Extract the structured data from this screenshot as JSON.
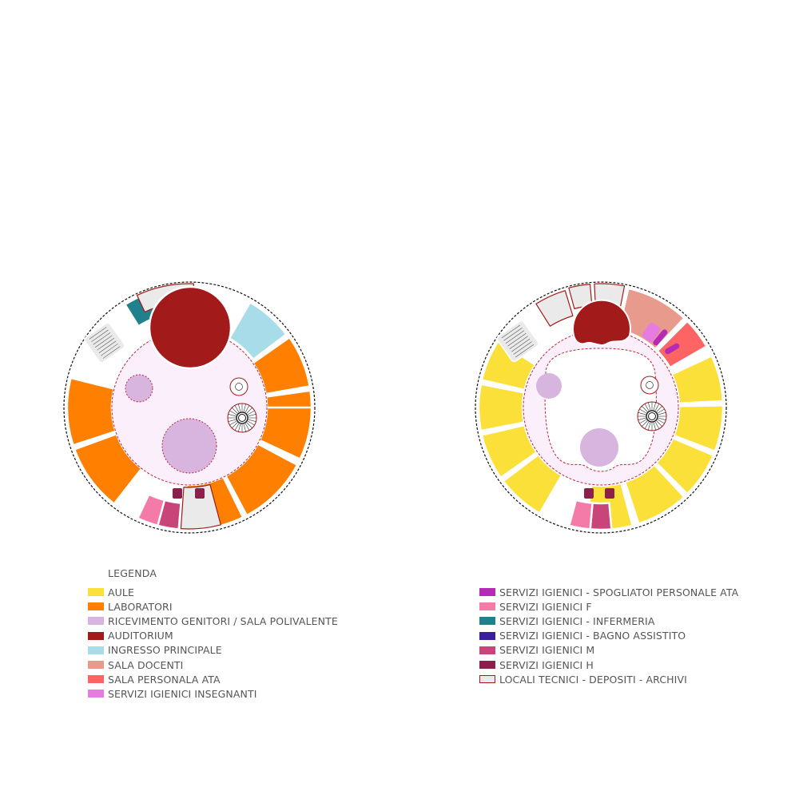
{
  "legend": {
    "title": "LEGENDA",
    "left_items": [
      {
        "label": "AULE",
        "color": "#FCE03A",
        "border": ""
      },
      {
        "label": "LABORATORI",
        "color": "#FF8000",
        "border": ""
      },
      {
        "label": "RICEVIMENTO GENITORI / SALA POLIVALENTE",
        "color": "#D8B5DE",
        "border": ""
      },
      {
        "label": "AUDITORIUM",
        "color": "#A21A1A",
        "border": ""
      },
      {
        "label": "INGRESSO PRINCIPALE",
        "color": "#A8DCE8",
        "border": ""
      },
      {
        "label": "SALA DOCENTI",
        "color": "#E89A8D",
        "border": ""
      },
      {
        "label": "SALA PERSONALA ATA",
        "color": "#FF6464",
        "border": ""
      },
      {
        "label": "SERVIZI IGIENICI INSEGNANTI",
        "color": "#E77CE0",
        "border": ""
      }
    ],
    "right_items": [
      {
        "label": "SERVIZI IGIENICI - SPOGLIATOI PERSONALE ATA",
        "color": "#B52BB5",
        "border": ""
      },
      {
        "label": "SERVIZI IGIENICI F",
        "color": "#F47BA8",
        "border": ""
      },
      {
        "label": "SERVIZI IGIENICI - INFERMERIA",
        "color": "#20808C",
        "border": ""
      },
      {
        "label": "SERVIZI IGIENICI - BAGNO ASSISTITO",
        "color": "#3A1E9A",
        "border": ""
      },
      {
        "label": "SERVIZI IGIENICI M",
        "color": "#C84479",
        "border": ""
      },
      {
        "label": "SERVIZI IGIENICI H",
        "color": "#8C1F4C",
        "border": ""
      },
      {
        "label": "LOCALI TECNICI - DEPOSITI - ARCHIVI",
        "color": "#EAEAEA",
        "border": "#A21A1A"
      }
    ]
  },
  "colors": {
    "aule": "#FCE03A",
    "laboratori": "#FF8000",
    "polivalente": "#D8B5DE",
    "auditorium": "#A21A1A",
    "ingresso": "#A8DCE8",
    "docenti": "#E89A8D",
    "ata": "#FF6464",
    "igienici_insegnanti": "#E77CE0",
    "spogliatoi_ata": "#B52BB5",
    "igienici_f": "#F47BA8",
    "infermeria": "#20808C",
    "bagno_assistito": "#3A1E9A",
    "igienici_m": "#C84479",
    "igienici_h": "#8C1F4C",
    "tecnici": "#EAEAEA",
    "tecnici_border": "#A21A1A",
    "atrium": "#FBEFFB",
    "dashed": "#C0243A",
    "outline": "#111111"
  }
}
